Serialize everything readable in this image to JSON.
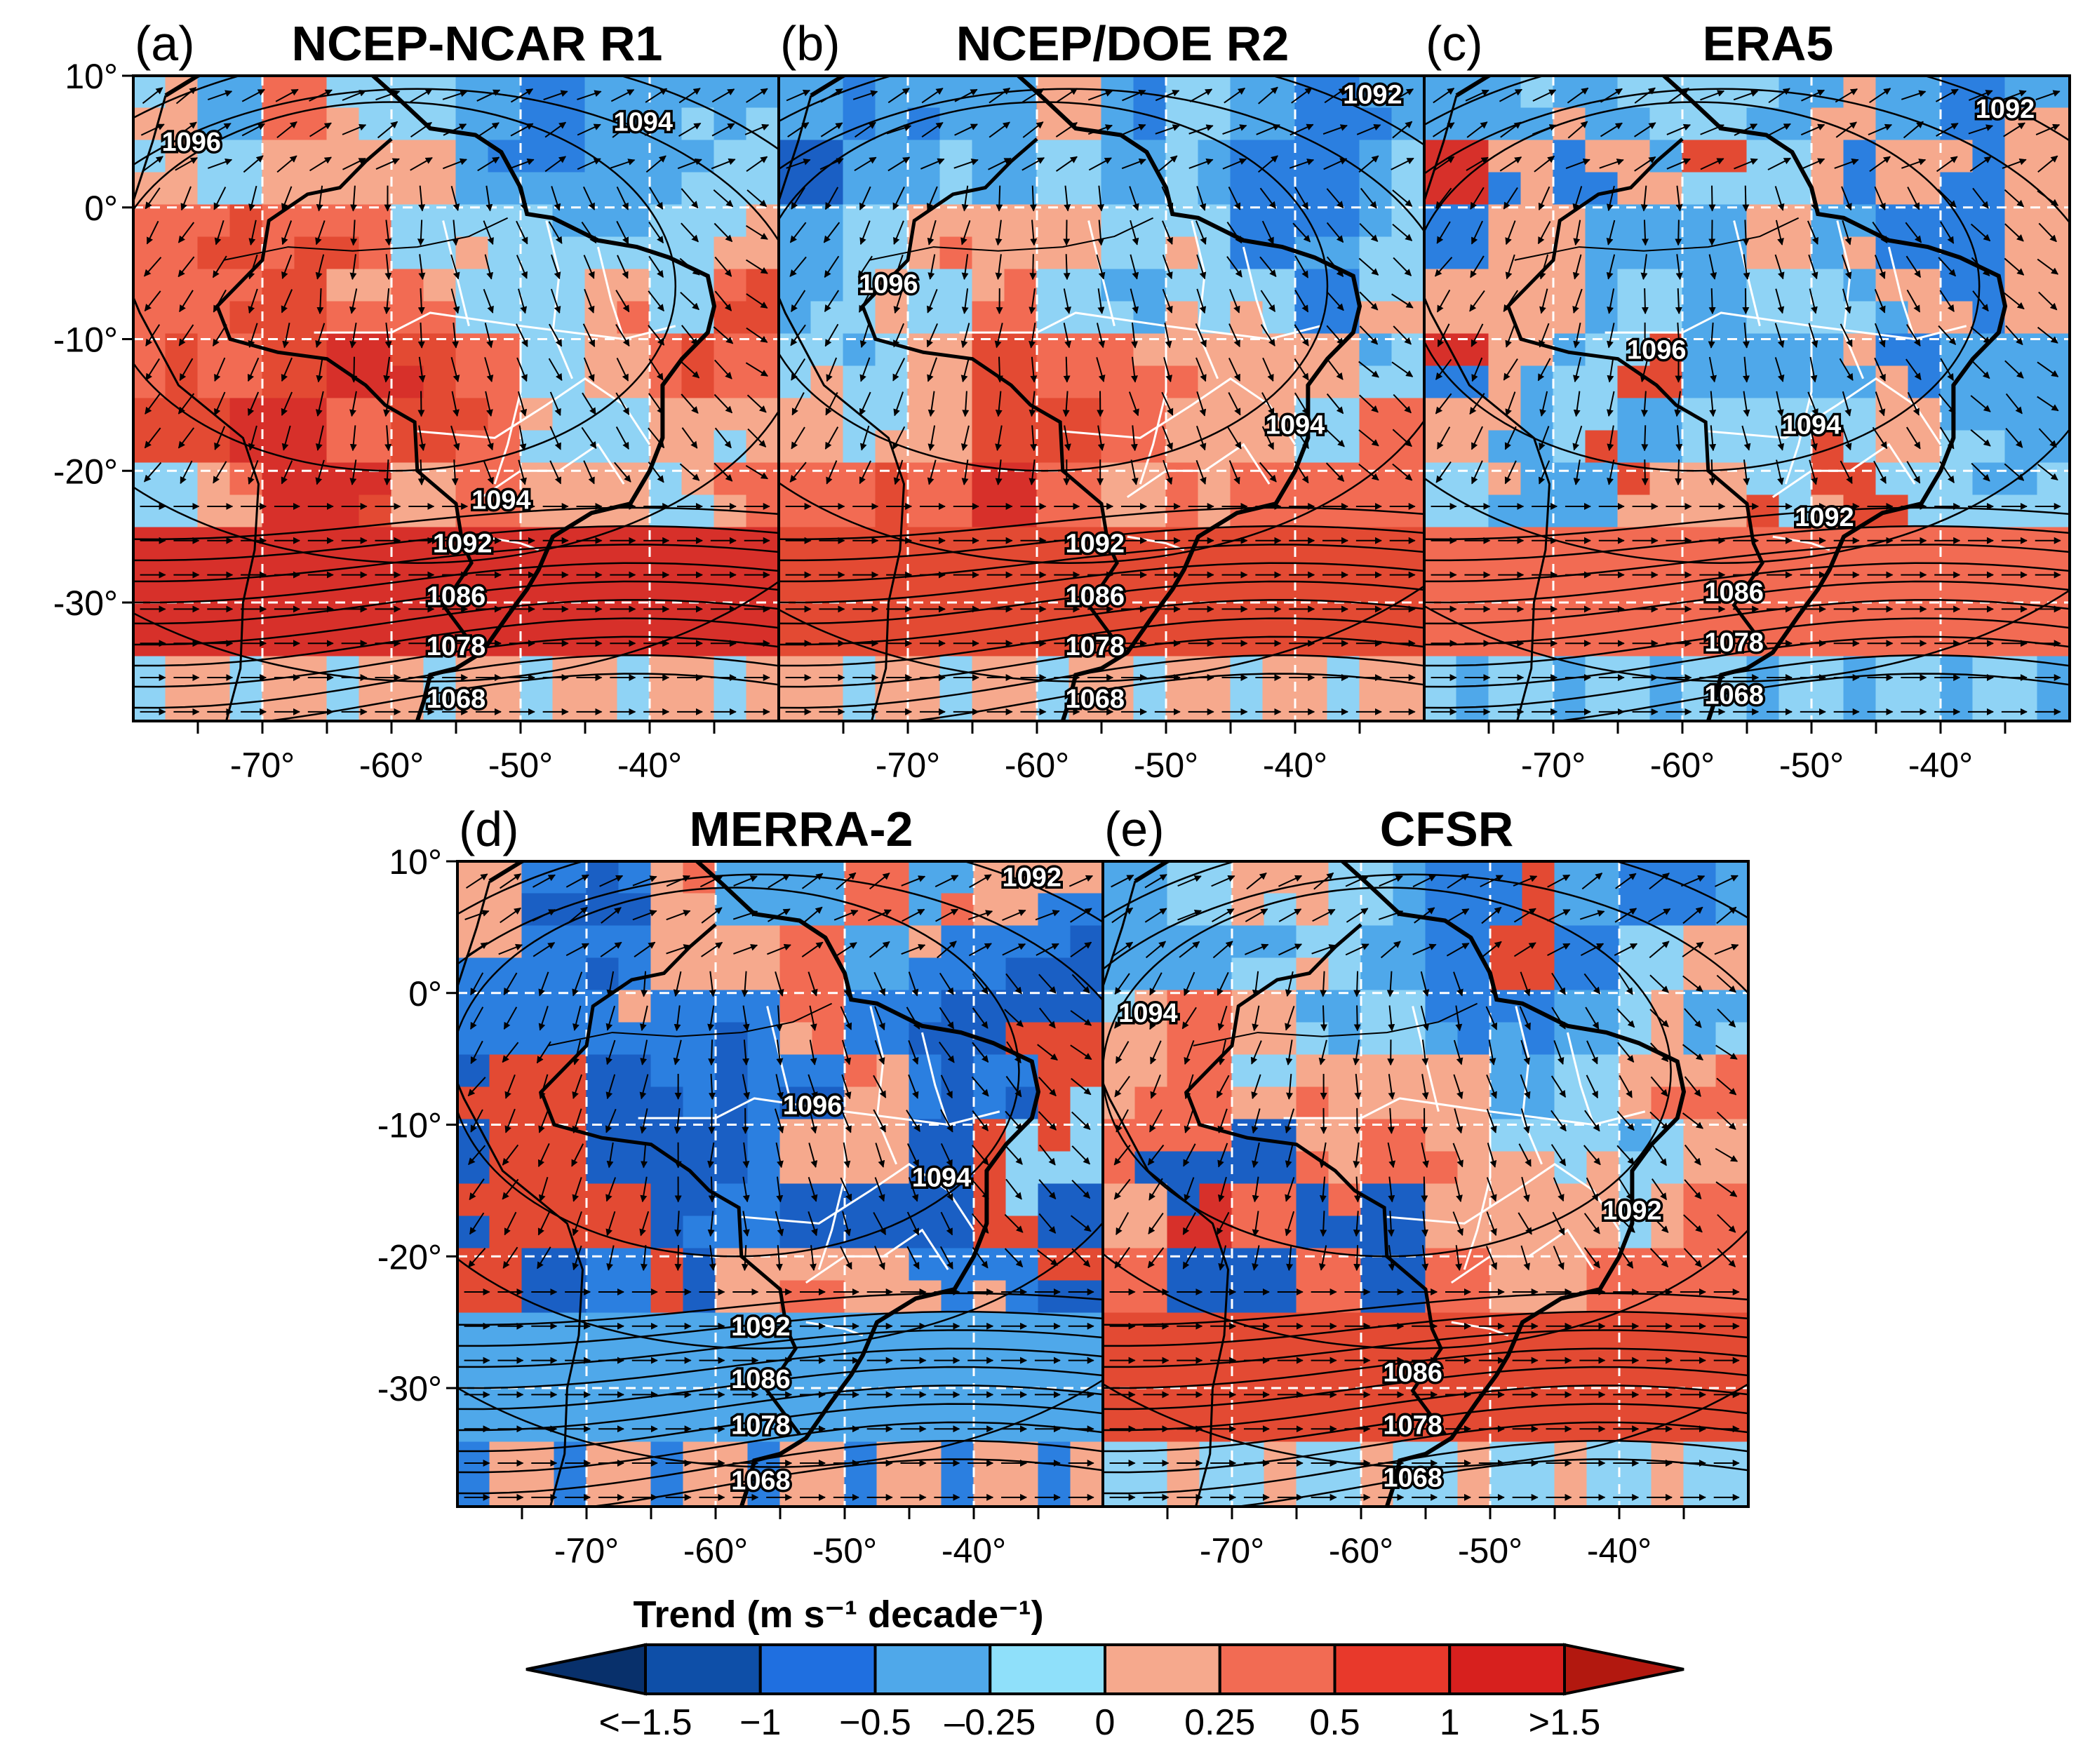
{
  "figure": {
    "panels": [
      {
        "letter": "(a)",
        "title": "NCEP-NCAR R1",
        "colors": [
          "#d7302a",
          "#e34a33",
          "#f26b53",
          "#f6a98d",
          "#8fd3f5",
          "#4fa8ea",
          "#2b7fe0",
          "#1a5fc4"
        ],
        "contour_labels": [
          {
            "text": "1096",
            "lon": -75.5,
            "lat": 5.0
          },
          {
            "text": "1094",
            "lon": -40.5,
            "lat": 6.5
          },
          {
            "text": "1094",
            "lon": -51.5,
            "lat": -22.2
          },
          {
            "text": "1092",
            "lon": -54.5,
            "lat": -25.5
          },
          {
            "text": "1086",
            "lon": -55.0,
            "lat": -29.5
          },
          {
            "text": "1078",
            "lon": -55.0,
            "lat": -33.3
          },
          {
            "text": "1068",
            "lon": -55.0,
            "lat": -37.3
          }
        ]
      },
      {
        "letter": "(b)",
        "title": "NCEP/DOE R2",
        "colors": [
          "#d7302a",
          "#e34a33",
          "#f26b53",
          "#f6a98d",
          "#8fd3f5",
          "#4fa8ea",
          "#2b7fe0",
          "#1a5fc4"
        ],
        "contour_labels": [
          {
            "text": "1092",
            "lon": -34.0,
            "lat": 8.6
          },
          {
            "text": "1096",
            "lon": -71.5,
            "lat": -5.8
          },
          {
            "text": "1094",
            "lon": -40.0,
            "lat": -16.5
          },
          {
            "text": "1092",
            "lon": -55.5,
            "lat": -25.5
          },
          {
            "text": "1086",
            "lon": -55.5,
            "lat": -29.5
          },
          {
            "text": "1078",
            "lon": -55.5,
            "lat": -33.3
          },
          {
            "text": "1068",
            "lon": -55.5,
            "lat": -37.3
          }
        ]
      },
      {
        "letter": "(c)",
        "title": "ERA5",
        "colors": [
          "#f26b53",
          "#f6a98d",
          "#e34a33",
          "#8fd3f5",
          "#4fa8ea",
          "#f6a98d",
          "#2b7fe0",
          "#d7302a"
        ],
        "contour_labels": [
          {
            "text": "1092",
            "lon": -35.0,
            "lat": 7.5
          },
          {
            "text": "1096",
            "lon": -62.0,
            "lat": -10.8
          },
          {
            "text": "1094",
            "lon": -50.0,
            "lat": -16.5
          },
          {
            "text": "1092",
            "lon": -49.0,
            "lat": -23.5
          },
          {
            "text": "1086",
            "lon": -56.0,
            "lat": -29.2
          },
          {
            "text": "1078",
            "lon": -56.0,
            "lat": -33.0
          },
          {
            "text": "1068",
            "lon": -56.0,
            "lat": -37.0
          }
        ]
      },
      {
        "letter": "(d)",
        "title": "MERRA-2",
        "colors": [
          "#8fd3f5",
          "#4fa8ea",
          "#f26b53",
          "#f6a98d",
          "#2b7fe0",
          "#1a5fc4",
          "#e34a33",
          "#8fd3f5"
        ],
        "contour_labels": [
          {
            "text": "1092",
            "lon": -35.5,
            "lat": 8.8
          },
          {
            "text": "1096",
            "lon": -52.5,
            "lat": -8.5
          },
          {
            "text": "1094",
            "lon": -42.5,
            "lat": -14.0
          },
          {
            "text": "1092",
            "lon": -56.5,
            "lat": -25.3
          },
          {
            "text": "1086",
            "lon": -56.5,
            "lat": -29.3
          },
          {
            "text": "1078",
            "lon": -56.5,
            "lat": -32.8
          },
          {
            "text": "1068",
            "lon": -56.5,
            "lat": -37.0
          }
        ]
      },
      {
        "letter": "(e)",
        "title": "CFSR",
        "colors": [
          "#e34a33",
          "#2b7fe0",
          "#4fa8ea",
          "#8fd3f5",
          "#f6a98d",
          "#f26b53",
          "#1a5fc4",
          "#d7302a"
        ],
        "contour_labels": [
          {
            "text": "1094",
            "lon": -76.5,
            "lat": -1.5
          },
          {
            "text": "1092",
            "lon": -39.0,
            "lat": -16.5
          },
          {
            "text": "1086",
            "lon": -56.0,
            "lat": -28.8
          },
          {
            "text": "1078",
            "lon": -56.0,
            "lat": -32.8
          },
          {
            "text": "1068",
            "lon": -56.0,
            "lat": -36.8
          }
        ]
      }
    ],
    "lat_ticks": [
      "10°",
      "0°",
      "-10°",
      "-20°",
      "-30°"
    ],
    "lat_values": [
      10,
      0,
      -10,
      -20,
      -30
    ],
    "lon_ticks": [
      "-70°",
      "-60°",
      "-50°",
      "-40°"
    ],
    "lon_values": [
      -70,
      -60,
      -50,
      -40
    ],
    "extent": {
      "lon_min": -80,
      "lon_max": -30,
      "lat_min": -39,
      "lat_max": 10
    }
  },
  "colorbar": {
    "title": "Trend (m s⁻¹ decade⁻¹)",
    "labels": [
      "<−1.5",
      "−1",
      "−0.5",
      "–0.25",
      "0",
      "0.25",
      "0.5",
      "1",
      ">1.5"
    ],
    "colors": [
      "#08306b",
      "#0e4fa8",
      "#1f6fe0",
      "#4fa8ea",
      "#8fe0fa",
      "#f6a98d",
      "#f26b53",
      "#e8392b",
      "#d7201e",
      "#b2180f"
    ]
  },
  "map_colors": {
    "coast": "#000000",
    "state_borders": "#ffffff",
    "grid": "#ffffff",
    "contour": "#000000",
    "vector": "#000000"
  }
}
